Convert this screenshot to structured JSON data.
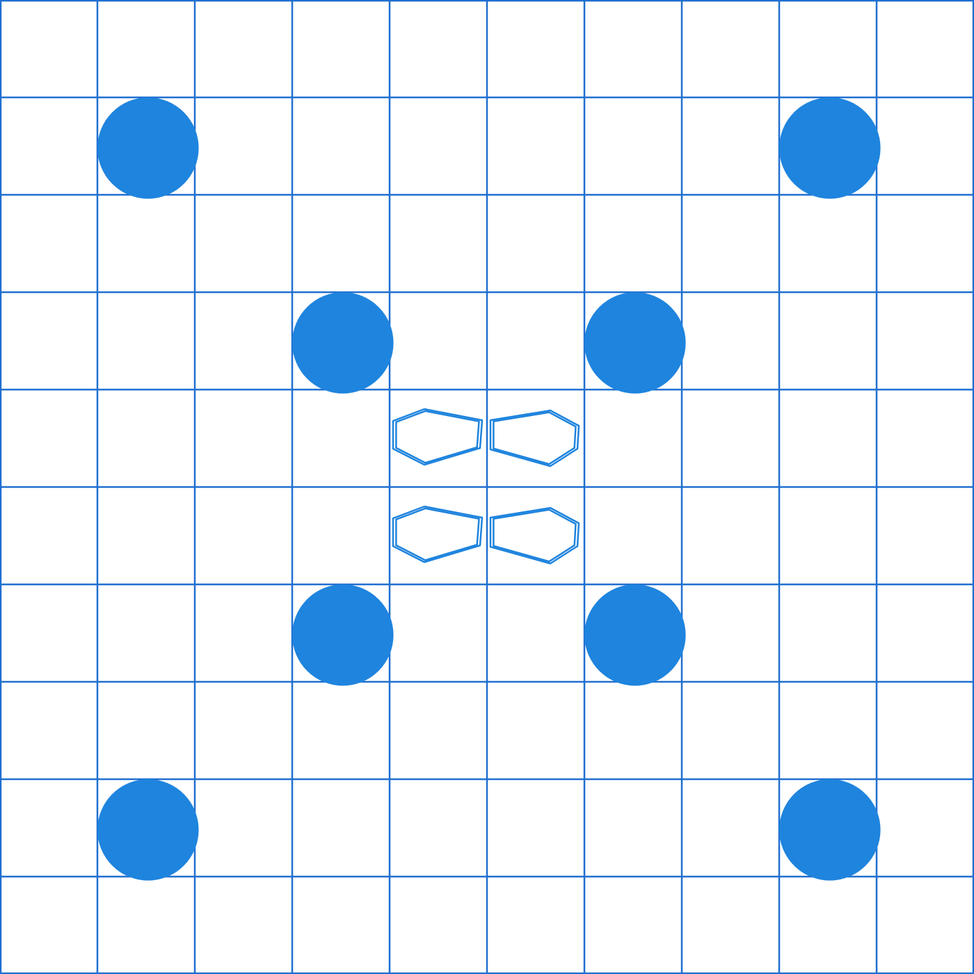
{
  "board": {
    "columns": 10,
    "rows": 10,
    "colors": {
      "background": "#ffffff",
      "grid": "#1f6fd1",
      "stone": "#1e84de",
      "marker": "#1e84de"
    },
    "stones": [
      {
        "row": 1,
        "col": 1
      },
      {
        "row": 1,
        "col": 8
      },
      {
        "row": 3,
        "col": 3
      },
      {
        "row": 3,
        "col": 6
      },
      {
        "row": 6,
        "col": 3
      },
      {
        "row": 6,
        "col": 6
      },
      {
        "row": 8,
        "col": 1
      },
      {
        "row": 8,
        "col": 8
      }
    ],
    "center_markers": [
      {
        "row": 4,
        "col": 4,
        "shape": "hexagon-outline",
        "facing": "left"
      },
      {
        "row": 4,
        "col": 5,
        "shape": "hexagon-outline",
        "facing": "right"
      },
      {
        "row": 5,
        "col": 4,
        "shape": "hexagon-outline",
        "facing": "left"
      },
      {
        "row": 5,
        "col": 5,
        "shape": "hexagon-outline",
        "facing": "right"
      }
    ]
  }
}
